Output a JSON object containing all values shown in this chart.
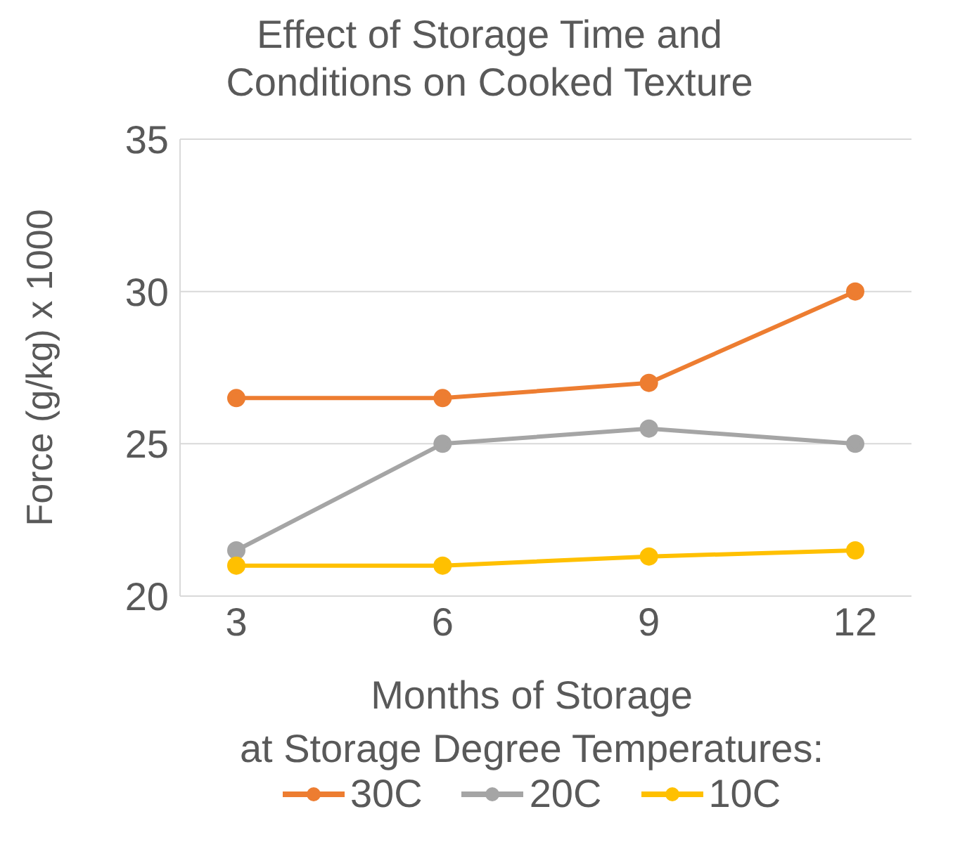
{
  "chart_data": {
    "type": "line",
    "title": "Effect of Storage Time and Conditions on Cooked Texture",
    "xlabel": "Months of Storage",
    "ylabel": "Force (g/kg) x 1000",
    "legend_title": "at Storage Degree Temperatures:",
    "categories": [
      "3",
      "6",
      "9",
      "12"
    ],
    "series": [
      {
        "name": "30C",
        "color": "#ed7d31",
        "values": [
          26.5,
          26.5,
          27,
          30
        ]
      },
      {
        "name": "20C",
        "color": "#a5a5a5",
        "values": [
          21.5,
          25,
          25.5,
          25
        ]
      },
      {
        "name": "10C",
        "color": "#ffc000",
        "values": [
          21,
          21,
          21.3,
          21.5
        ]
      }
    ],
    "ylim": [
      20,
      35
    ],
    "yticks": [
      20,
      25,
      30,
      35
    ],
    "grid": "y",
    "legend": "bottom",
    "marker": "circle",
    "line_style": "solid"
  }
}
